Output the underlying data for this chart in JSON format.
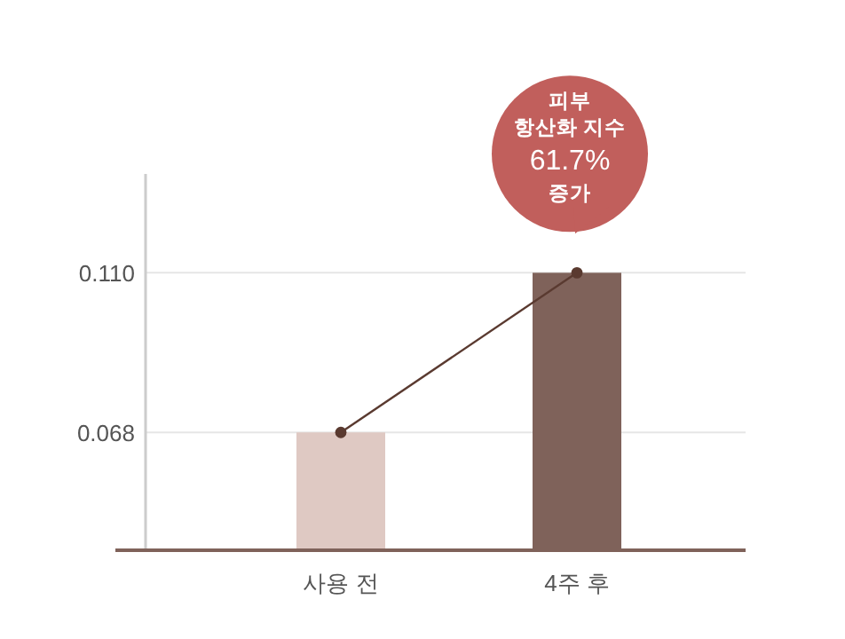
{
  "chart_data": {
    "type": "bar",
    "categories": [
      "사용 전",
      "4주 후"
    ],
    "series": [
      {
        "colors": [
          "#dfc9c3",
          "#7f625a"
        ],
        "values": [
          0.068,
          0.11
        ]
      },
      {
        "type": "line",
        "color": "#5a3a30",
        "marker": "circle",
        "values": [
          0.068,
          0.11
        ]
      }
    ],
    "ylim": [
      0.037,
      0.136
    ],
    "yticks": [
      {
        "value": 0.068,
        "label": "0.068"
      },
      {
        "value": 0.11,
        "label": "0.110"
      }
    ],
    "grid": "y",
    "annotations": [
      {
        "text": "피부\n항산화 지수\n61.7%\n증가",
        "x": "4주 후",
        "y": 0.11
      }
    ]
  }
}
